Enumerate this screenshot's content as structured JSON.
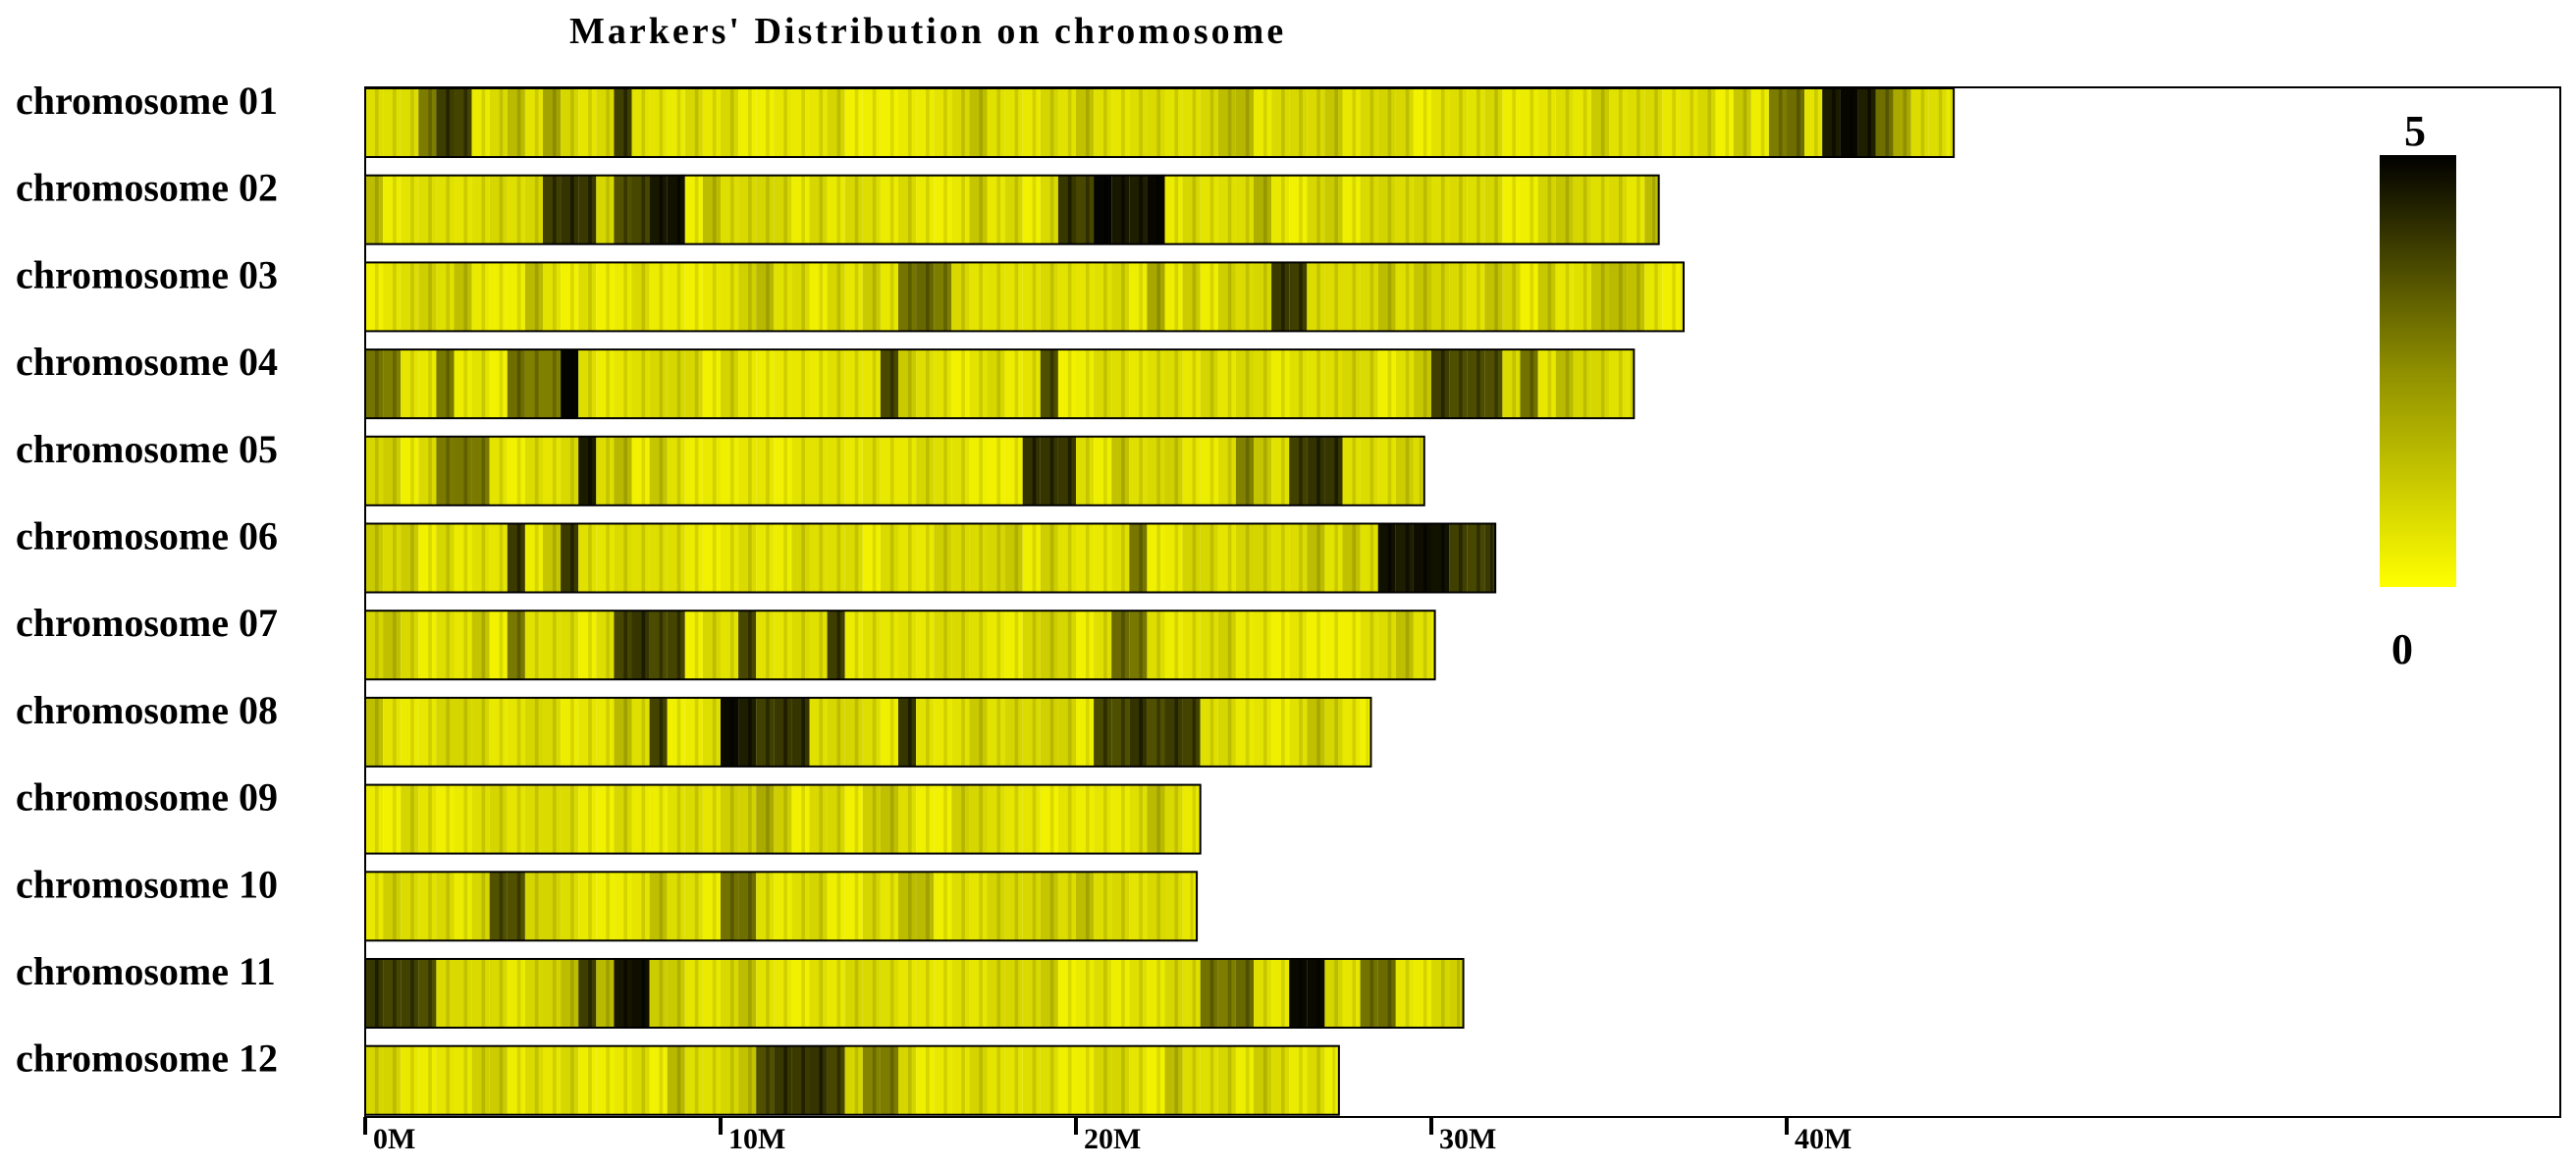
{
  "chart_data": {
    "type": "heatmap",
    "title": "Markers' Distribution on chromosome",
    "xlim": [
      0,
      60
    ],
    "x_ticks": [
      0,
      10,
      20,
      30,
      40
    ],
    "x_tick_labels": [
      "0M",
      "10M",
      "20M",
      "30M",
      "40M"
    ],
    "color_scale": {
      "min": 0,
      "max": 5,
      "min_label": "0",
      "max_label": "5",
      "low_color": "#ffff00",
      "high_color": "#000000"
    },
    "bin_size_mb": 0.5,
    "chromosomes": [
      {
        "label": "chromosome  01",
        "length_mb": 44.7,
        "dark_regions": [
          [
            1.6,
            1.9,
            3
          ],
          [
            2.2,
            3.0,
            4
          ],
          [
            5.0,
            5.3,
            2
          ],
          [
            6.9,
            7.7,
            4
          ],
          [
            39.5,
            40.5,
            3
          ],
          [
            41.0,
            42.3,
            5
          ],
          [
            42.3,
            42.8,
            3
          ],
          [
            43.0,
            43.4,
            2
          ]
        ]
      },
      {
        "label": "chromosome  02",
        "length_mb": 36.4,
        "dark_regions": [
          [
            3.3,
            3.7,
            2
          ],
          [
            3.9,
            4.1,
            3
          ],
          [
            5.1,
            6.4,
            4
          ],
          [
            7.0,
            8.1,
            4
          ],
          [
            8.2,
            9.0,
            5
          ],
          [
            19.7,
            20.5,
            4
          ],
          [
            20.7,
            22.6,
            5
          ],
          [
            25.0,
            25.4,
            2
          ]
        ]
      },
      {
        "label": "chromosome  03",
        "length_mb": 37.1,
        "dark_regions": [
          [
            15.2,
            16.7,
            3
          ],
          [
            22.1,
            22.4,
            2
          ],
          [
            25.6,
            26.4,
            4
          ],
          [
            26.8,
            27.1,
            2
          ]
        ]
      },
      {
        "label": "chromosome  04",
        "length_mb": 35.7,
        "dark_regions": [
          [
            0,
            1.0,
            3
          ],
          [
            1.8,
            2.7,
            3
          ],
          [
            3.9,
            5.4,
            3
          ],
          [
            5.4,
            6.0,
            5
          ],
          [
            14.5,
            15.0,
            4
          ],
          [
            15.8,
            16.1,
            2
          ],
          [
            18.9,
            19.4,
            4
          ],
          [
            29.9,
            31.8,
            4
          ],
          [
            31.8,
            32.2,
            5
          ],
          [
            32.4,
            33.0,
            3
          ]
        ]
      },
      {
        "label": "chromosome  05",
        "length_mb": 29.8,
        "dark_regions": [
          [
            2.1,
            3.7,
            3
          ],
          [
            5.8,
            6.5,
            5
          ],
          [
            13.5,
            13.7,
            4
          ],
          [
            18.4,
            19.8,
            4
          ],
          [
            24.4,
            24.8,
            3
          ],
          [
            25.9,
            27.5,
            4
          ]
        ]
      },
      {
        "label": "chromosome  06",
        "length_mb": 31.8,
        "dark_regions": [
          [
            3.4,
            3.6,
            3
          ],
          [
            4.2,
            4.6,
            4
          ],
          [
            5.5,
            6.2,
            4
          ],
          [
            21.5,
            21.8,
            3
          ],
          [
            28.6,
            30.4,
            5
          ],
          [
            30.4,
            31.8,
            4
          ]
        ]
      },
      {
        "label": "chromosome  07",
        "length_mb": 30.1,
        "dark_regions": [
          [
            4.2,
            4.6,
            3
          ],
          [
            7.2,
            9.0,
            4
          ],
          [
            10.3,
            10.8,
            4
          ],
          [
            12.9,
            13.4,
            4
          ],
          [
            21.0,
            21.9,
            3
          ]
        ]
      },
      {
        "label": "chromosome  08",
        "length_mb": 28.3,
        "dark_regions": [
          [
            4.8,
            5.2,
            4
          ],
          [
            8.0,
            8.5,
            4
          ],
          [
            9.8,
            11.1,
            5
          ],
          [
            11.2,
            12.6,
            4
          ],
          [
            14.8,
            15.3,
            4
          ],
          [
            20.3,
            23.3,
            4
          ]
        ]
      },
      {
        "label": "chromosome  09",
        "length_mb": 23.5,
        "dark_regions": [
          [
            5.4,
            5.7,
            2
          ],
          [
            9.4,
            9.6,
            2
          ],
          [
            11.1,
            11.5,
            2
          ]
        ]
      },
      {
        "label": "chromosome  10",
        "length_mb": 23.4,
        "dark_regions": [
          [
            3.6,
            4.4,
            4
          ],
          [
            10.1,
            10.9,
            3
          ]
        ]
      },
      {
        "label": "chromosome  11",
        "length_mb": 30.9,
        "dark_regions": [
          [
            0,
            2.0,
            4
          ],
          [
            6.0,
            6.4,
            4
          ],
          [
            7.2,
            8.2,
            5
          ],
          [
            20.8,
            21.2,
            3
          ],
          [
            23.6,
            24.8,
            3
          ],
          [
            25.9,
            27.0,
            5
          ],
          [
            28.0,
            29.2,
            3
          ]
        ]
      },
      {
        "label": "chromosome  12",
        "length_mb": 27.4,
        "dark_regions": [
          [
            11.2,
            13.4,
            4
          ],
          [
            13.8,
            14.8,
            3
          ],
          [
            17.4,
            17.6,
            5
          ]
        ]
      }
    ]
  }
}
